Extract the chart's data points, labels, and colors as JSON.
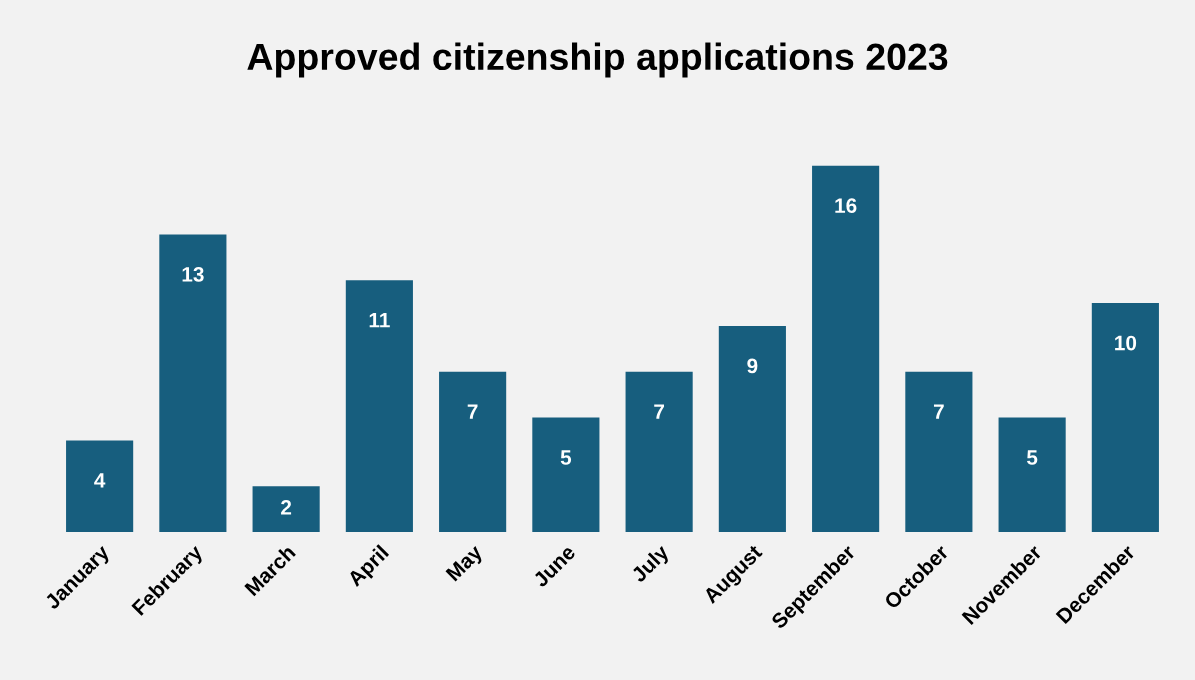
{
  "chart_data": {
    "type": "bar",
    "title": "Approved citizenship applications 2023",
    "categories": [
      "January",
      "February",
      "March",
      "April",
      "May",
      "June",
      "July",
      "August",
      "September",
      "October",
      "November",
      "December"
    ],
    "values": [
      4,
      13,
      2,
      11,
      7,
      5,
      7,
      9,
      16,
      7,
      5,
      10
    ],
    "color": "#175e7e",
    "data_labels": true,
    "grid": false,
    "legend": false,
    "tick_labels": "x"
  }
}
